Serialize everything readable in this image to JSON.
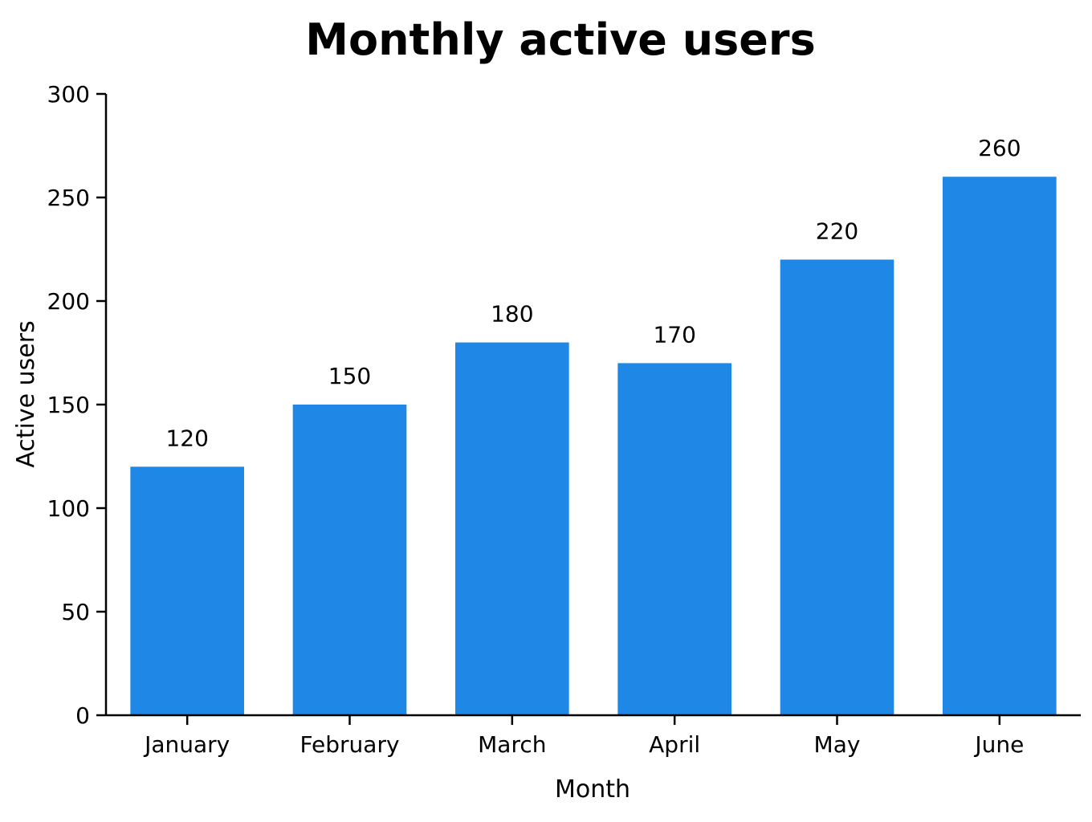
{
  "chart_data": {
    "type": "bar",
    "title": "Monthly active users",
    "xlabel": "Month",
    "ylabel": "Active users",
    "categories": [
      "January",
      "February",
      "March",
      "April",
      "May",
      "June"
    ],
    "values": [
      120,
      150,
      180,
      170,
      220,
      260
    ],
    "ylim": [
      0,
      300
    ],
    "yticks": [
      0,
      50,
      100,
      150,
      200,
      250,
      300
    ],
    "grid": false,
    "legend": "none",
    "bar_color": "#1f87e5"
  }
}
